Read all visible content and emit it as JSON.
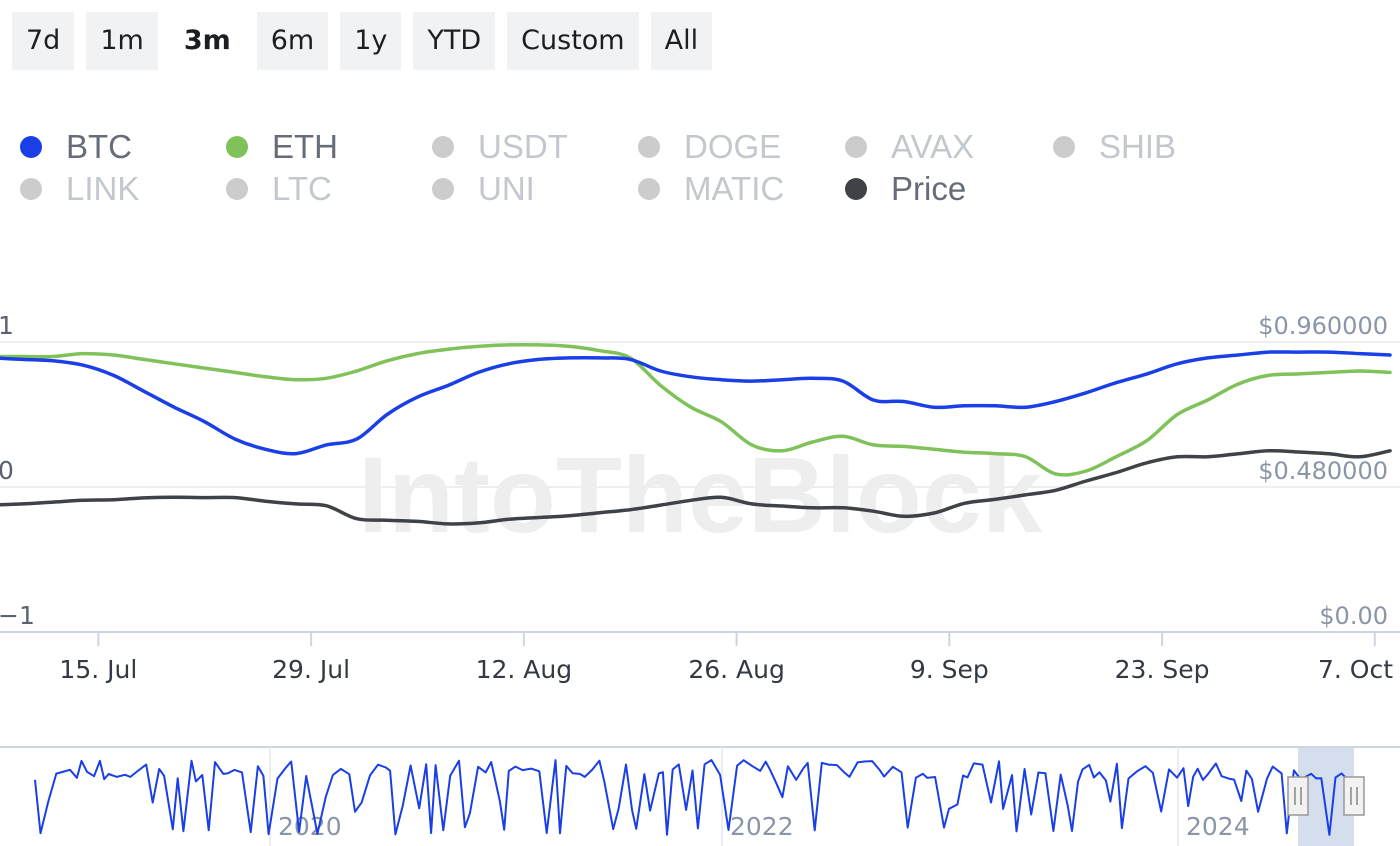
{
  "range_buttons": [
    {
      "label": "7d",
      "active": false
    },
    {
      "label": "1m",
      "active": false
    },
    {
      "label": "3m",
      "active": true
    },
    {
      "label": "6m",
      "active": false
    },
    {
      "label": "1y",
      "active": false
    },
    {
      "label": "YTD",
      "active": false
    },
    {
      "label": "Custom",
      "active": false
    },
    {
      "label": "All",
      "active": false
    }
  ],
  "legend": [
    {
      "label": "BTC",
      "color": "#1a3fe6",
      "enabled": true
    },
    {
      "label": "ETH",
      "color": "#80c25a",
      "enabled": true
    },
    {
      "label": "USDT",
      "color": "#cccccc",
      "enabled": false
    },
    {
      "label": "DOGE",
      "color": "#cccccc",
      "enabled": false
    },
    {
      "label": "AVAX",
      "color": "#cccccc",
      "enabled": false
    },
    {
      "label": "SHIB",
      "color": "#cccccc",
      "enabled": false
    },
    {
      "label": "LINK",
      "color": "#cccccc",
      "enabled": false
    },
    {
      "label": "LTC",
      "color": "#cccccc",
      "enabled": false
    },
    {
      "label": "UNI",
      "color": "#cccccc",
      "enabled": false
    },
    {
      "label": "MATIC",
      "color": "#cccccc",
      "enabled": false
    },
    {
      "label": "Price",
      "color": "#3f4246",
      "enabled": true
    }
  ],
  "watermark": "IntoTheBlock",
  "colors": {
    "disabled_text": "#c3c8cf",
    "enabled_text": "#666d78",
    "axis_text": "#5a6270",
    "right_axis_text": "#8a96a6"
  },
  "chart_data": {
    "type": "line",
    "x_label_ticks": [
      "15. Jul",
      "29. Jul",
      "12. Aug",
      "26. Aug",
      "9. Sep",
      "23. Sep",
      "7. Oct"
    ],
    "x_range": [
      "2024-07-08",
      "2024-10-08"
    ],
    "x": [
      "2024-07-08",
      "2024-07-10",
      "2024-07-12",
      "2024-07-14",
      "2024-07-16",
      "2024-07-18",
      "2024-07-20",
      "2024-07-22",
      "2024-07-24",
      "2024-07-26",
      "2024-07-28",
      "2024-07-30",
      "2024-08-01",
      "2024-08-03",
      "2024-08-05",
      "2024-08-07",
      "2024-08-09",
      "2024-08-11",
      "2024-08-13",
      "2024-08-15",
      "2024-08-17",
      "2024-08-19",
      "2024-08-21",
      "2024-08-23",
      "2024-08-25",
      "2024-08-27",
      "2024-08-29",
      "2024-08-31",
      "2024-09-02",
      "2024-09-04",
      "2024-09-06",
      "2024-09-08",
      "2024-09-10",
      "2024-09-12",
      "2024-09-14",
      "2024-09-16",
      "2024-09-18",
      "2024-09-20",
      "2024-09-22",
      "2024-09-24",
      "2024-09-26",
      "2024-09-28",
      "2024-09-30",
      "2024-10-02",
      "2024-10-04",
      "2024-10-06",
      "2024-10-08"
    ],
    "left_axis": {
      "ticks": [
        "1",
        "0",
        "−1"
      ],
      "range": [
        -1,
        1
      ]
    },
    "right_axis": {
      "ticks": [
        "$0.960000",
        "$0.480000",
        "$0.00"
      ],
      "range": [
        0,
        0.96
      ]
    },
    "series": [
      {
        "name": "BTC",
        "axis": "left",
        "color": "#1a3fe6",
        "values": [
          0.89,
          0.88,
          0.87,
          0.84,
          0.77,
          0.66,
          0.55,
          0.45,
          0.33,
          0.26,
          0.23,
          0.29,
          0.33,
          0.5,
          0.62,
          0.7,
          0.79,
          0.85,
          0.88,
          0.89,
          0.89,
          0.88,
          0.8,
          0.76,
          0.74,
          0.73,
          0.74,
          0.75,
          0.73,
          0.6,
          0.59,
          0.55,
          0.56,
          0.56,
          0.55,
          0.59,
          0.65,
          0.72,
          0.78,
          0.85,
          0.89,
          0.91,
          0.93,
          0.93,
          0.93,
          0.92,
          0.91
        ]
      },
      {
        "name": "ETH",
        "axis": "left",
        "color": "#80c25a",
        "values": [
          0.9,
          0.9,
          0.9,
          0.92,
          0.91,
          0.88,
          0.85,
          0.82,
          0.79,
          0.76,
          0.74,
          0.75,
          0.8,
          0.87,
          0.92,
          0.95,
          0.97,
          0.98,
          0.98,
          0.97,
          0.94,
          0.89,
          0.7,
          0.55,
          0.45,
          0.29,
          0.25,
          0.31,
          0.35,
          0.29,
          0.28,
          0.26,
          0.24,
          0.23,
          0.21,
          0.09,
          0.11,
          0.21,
          0.32,
          0.5,
          0.6,
          0.71,
          0.77,
          0.78,
          0.79,
          0.8,
          0.79
        ]
      },
      {
        "name": "Price",
        "axis": "right",
        "color": "#3f4246",
        "values": [
          0.42,
          0.424,
          0.43,
          0.436,
          0.438,
          0.444,
          0.446,
          0.445,
          0.445,
          0.433,
          0.424,
          0.418,
          0.375,
          0.37,
          0.366,
          0.358,
          0.361,
          0.373,
          0.379,
          0.385,
          0.395,
          0.405,
          0.42,
          0.436,
          0.446,
          0.424,
          0.417,
          0.411,
          0.411,
          0.4,
          0.383,
          0.394,
          0.426,
          0.439,
          0.454,
          0.469,
          0.5,
          0.528,
          0.56,
          0.58,
          0.58,
          0.59,
          0.6,
          0.596,
          0.59,
          0.58,
          0.6
        ]
      }
    ],
    "navigator": {
      "x_ticks": [
        "2020",
        "2022",
        "2024"
      ],
      "selected_range": [
        "2024-07-08",
        "2024-10-08"
      ]
    }
  }
}
